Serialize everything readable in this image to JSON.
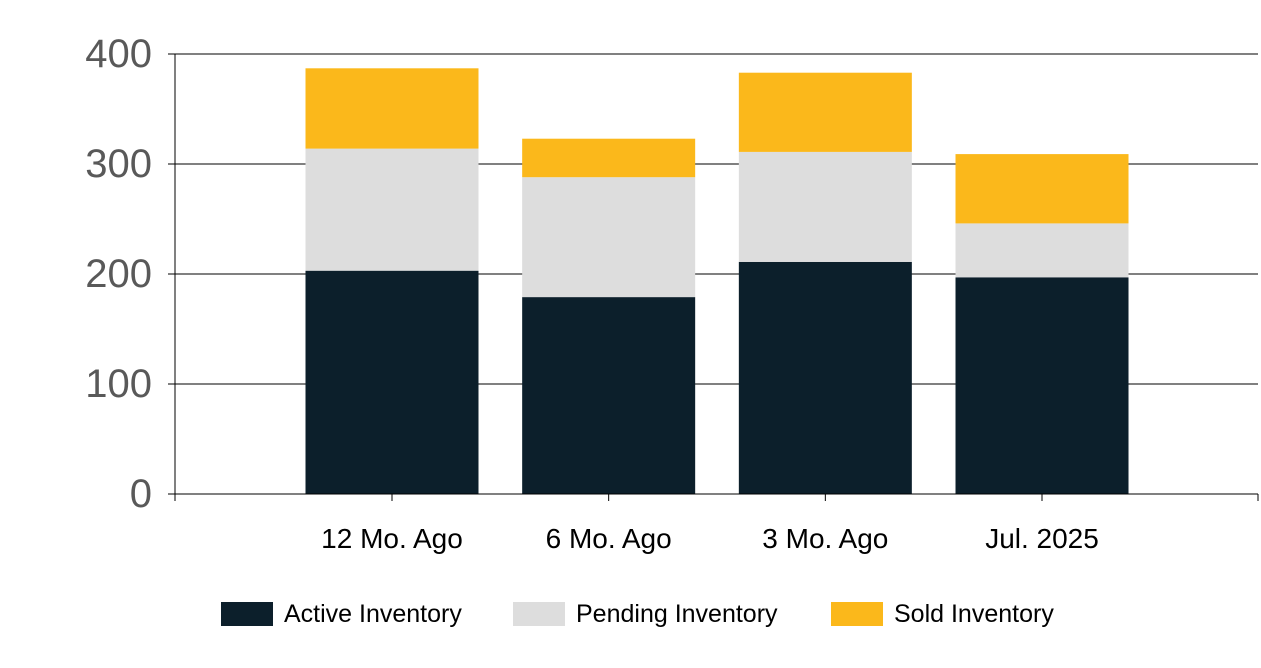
{
  "chart_data": {
    "type": "bar",
    "stacked": true,
    "categories": [
      "12 Mo. Ago",
      "6 Mo. Ago",
      "3 Mo. Ago",
      "Jul. 2025"
    ],
    "series": [
      {
        "name": "Active Inventory",
        "color": "#0c1f2b",
        "values": [
          203,
          179,
          211,
          197
        ]
      },
      {
        "name": "Pending Inventory",
        "color": "#dddddd",
        "values": [
          111,
          109,
          100,
          49
        ]
      },
      {
        "name": "Sold Inventory",
        "color": "#fbb81b",
        "values": [
          73,
          35,
          72,
          63
        ]
      }
    ],
    "ylim": [
      0,
      400
    ],
    "yticks": [
      0,
      100,
      200,
      300,
      400
    ],
    "grid": true,
    "legend": "bottom"
  }
}
